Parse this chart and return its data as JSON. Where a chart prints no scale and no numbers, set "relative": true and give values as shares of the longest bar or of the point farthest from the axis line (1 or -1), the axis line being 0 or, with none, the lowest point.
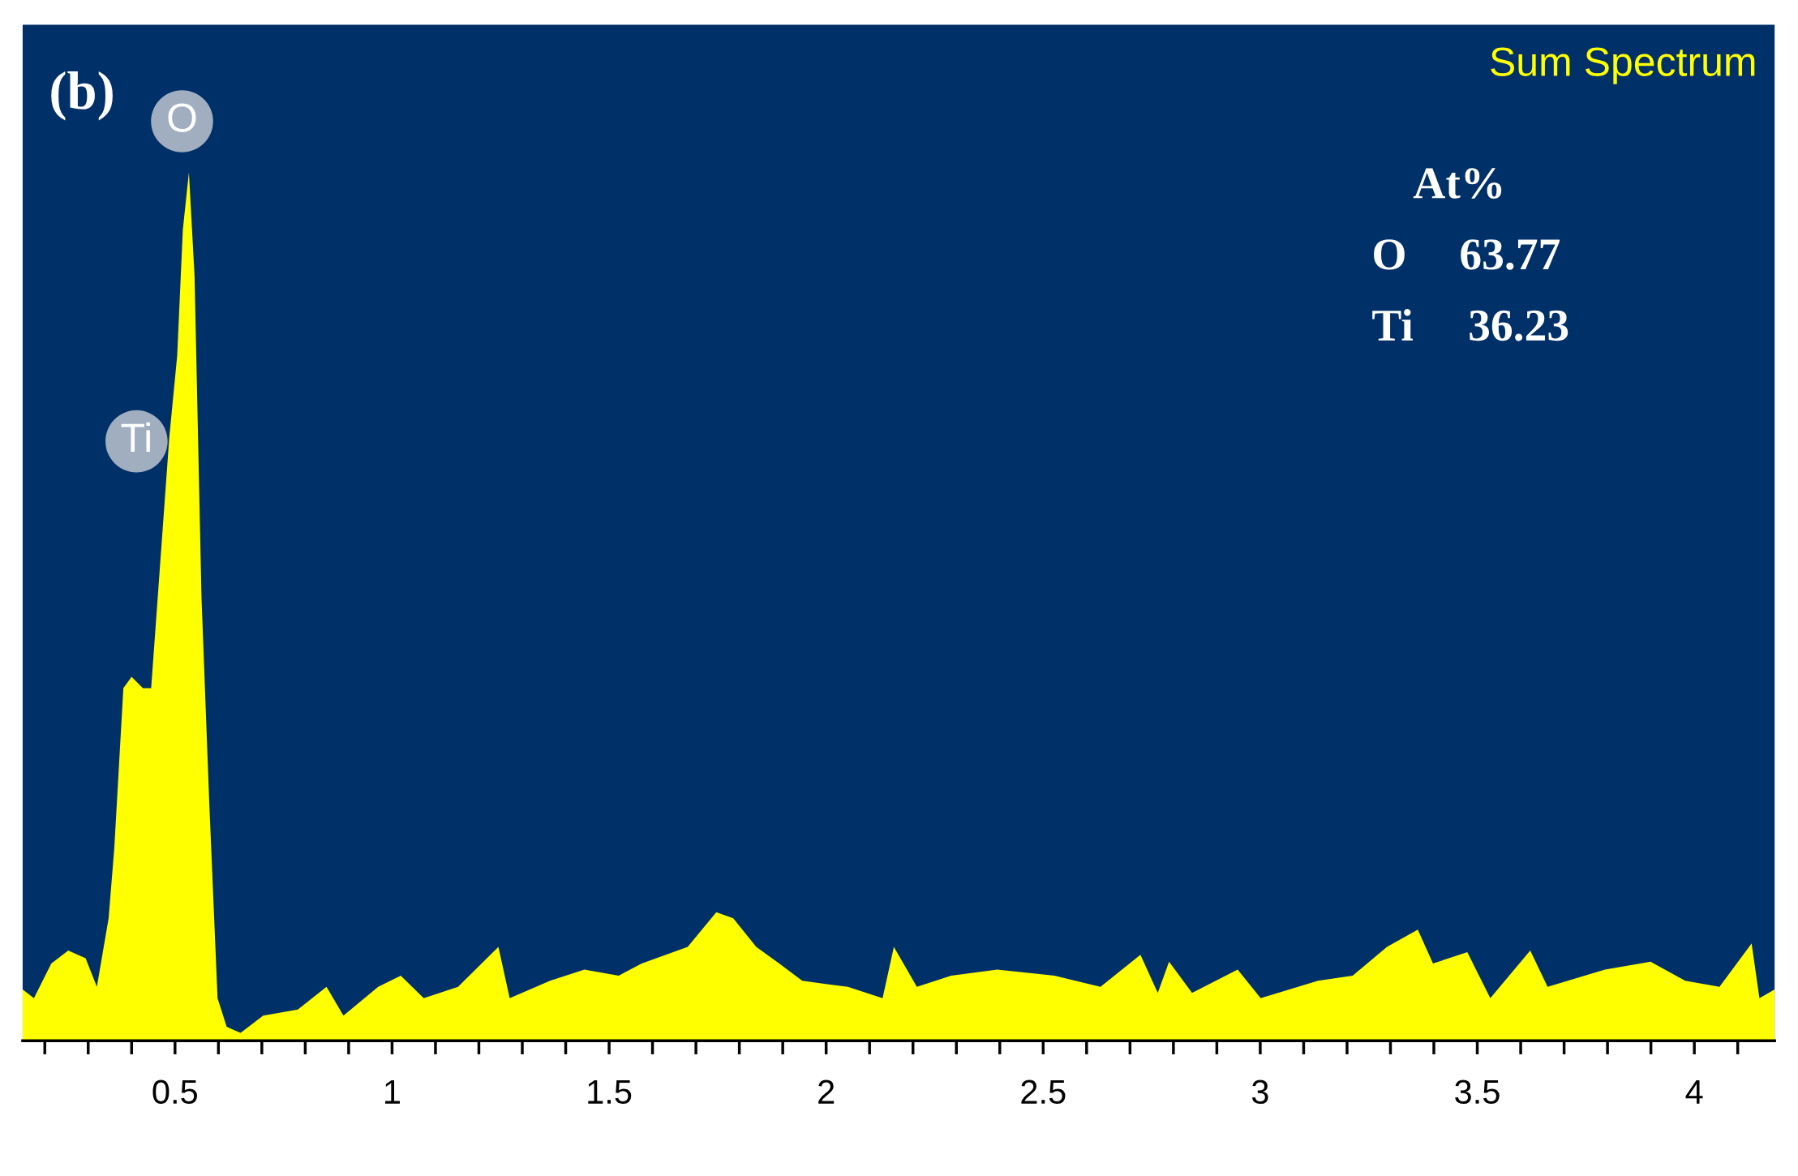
{
  "chart_data": {
    "type": "area",
    "relative": true,
    "color": "#ffff00",
    "x": [
      0.149,
      0.175,
      0.215,
      0.254,
      0.294,
      0.32,
      0.347,
      0.36,
      0.381,
      0.4,
      0.426,
      0.445,
      0.466,
      0.487,
      0.505,
      0.518,
      0.532,
      0.545,
      0.561,
      0.579,
      0.598,
      0.619,
      0.651,
      0.703,
      0.783,
      0.849,
      0.888,
      0.968,
      1.02,
      1.073,
      1.152,
      1.245,
      1.271,
      1.364,
      1.443,
      1.522,
      1.575,
      1.681,
      1.747,
      1.786,
      1.839,
      1.892,
      1.945,
      2.05,
      2.13,
      2.156,
      2.209,
      2.288,
      2.394,
      2.526,
      2.632,
      2.724,
      2.764,
      2.79,
      2.843,
      2.948,
      3.001,
      3.133,
      3.213,
      3.292,
      3.363,
      3.398,
      3.477,
      3.53,
      3.622,
      3.662,
      3.794,
      3.899,
      3.979,
      4.058,
      4.132,
      4.15,
      4.185
    ],
    "values": [
      0.059,
      0.049,
      0.089,
      0.104,
      0.095,
      0.062,
      0.141,
      0.221,
      0.406,
      0.419,
      0.406,
      0.406,
      0.551,
      0.696,
      0.789,
      0.934,
      1,
      0.881,
      0.511,
      0.273,
      0.049,
      0.016,
      0.009,
      0.029,
      0.036,
      0.062,
      0.029,
      0.062,
      0.075,
      0.049,
      0.062,
      0.108,
      0.049,
      0.069,
      0.082,
      0.075,
      0.089,
      0.108,
      0.148,
      0.141,
      0.108,
      0.089,
      0.069,
      0.062,
      0.049,
      0.108,
      0.062,
      0.075,
      0.082,
      0.075,
      0.062,
      0.099,
      0.055,
      0.091,
      0.055,
      0.082,
      0.049,
      0.069,
      0.075,
      0.108,
      0.128,
      0.089,
      0.102,
      0.049,
      0.104,
      0.062,
      0.082,
      0.091,
      0.069,
      0.062,
      0.112,
      0.049,
      0.059
    ],
    "xlim": [
      0.149,
      4.185
    ],
    "xticks": [
      0.5,
      1,
      1.5,
      2,
      2.5,
      3,
      3.5,
      4
    ],
    "grid": false,
    "annotations": [
      "(b)",
      "Sum Spectrum",
      "At%",
      "O",
      "63.77",
      "Ti",
      "36.23",
      "O",
      "Ti"
    ]
  }
}
